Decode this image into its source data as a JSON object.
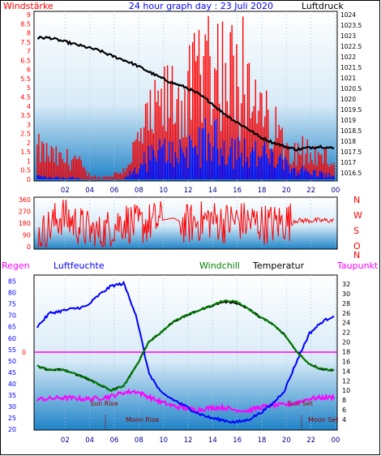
{
  "title": "24 hour graph day : 23 Juli 2020",
  "colors": {
    "red": "#ff0000",
    "blue": "#0000ff",
    "black": "#000000",
    "magenta": "#ff00ff",
    "green": "#008000",
    "navy": "#00008b",
    "maroon": "#8b0000"
  },
  "hour_ticks": [
    "02",
    "04",
    "06",
    "08",
    "10",
    "12",
    "14",
    "16",
    "18",
    "20",
    "22",
    "00"
  ],
  "chart_data": [
    {
      "type": "line",
      "panel": "wind-and-pressure",
      "left_label": "Windstärke",
      "right_label": "Luftdruck",
      "left_ticks": [
        "0",
        "0.5",
        "1",
        "1.5",
        "2",
        "2.5",
        "3",
        "3.5",
        "4",
        "4.5",
        "5",
        "5.5",
        "6",
        "6.5",
        "7",
        "7.5",
        "8",
        "8.5",
        "9"
      ],
      "right_ticks": [
        "1016.5",
        "1017",
        "1017.5",
        "1018",
        "1018.5",
        "1019",
        "1019.5",
        "1020",
        "1020.5",
        "1021",
        "1021.5",
        "1022",
        "1022.5",
        "1023",
        "1023.5",
        "1024"
      ],
      "ylim_left": [
        0,
        9
      ],
      "ylim_right": [
        1016.5,
        1024
      ],
      "x": [
        0,
        1,
        2,
        3,
        4,
        5,
        6,
        7,
        8,
        9,
        10,
        11,
        12,
        13,
        14,
        15,
        16,
        17,
        18,
        19,
        20,
        21,
        22,
        23,
        24
      ],
      "series": [
        {
          "role": "pressure",
          "color": "#000000",
          "values": [
            1022.9,
            1022.9,
            1022.75,
            1022.6,
            1022.45,
            1022.3,
            1022.05,
            1021.85,
            1021.6,
            1021.3,
            1021.0,
            1020.75,
            1020.55,
            1020.25,
            1019.85,
            1019.35,
            1018.95,
            1018.6,
            1018.2,
            1017.95,
            1017.75,
            1017.6,
            1017.7,
            1017.75,
            1017.65
          ]
        },
        {
          "role": "wind-gust",
          "color": "#ff0000",
          "values": [
            1.6,
            1.3,
            1.0,
            1.2,
            0.3,
            0.1,
            0.2,
            0.5,
            1.8,
            3.0,
            3.8,
            4.5,
            4.2,
            5.5,
            6.8,
            6.0,
            5.5,
            4.2,
            3.5,
            2.8,
            2.0,
            1.8,
            1.4,
            1.2,
            1.0
          ]
        },
        {
          "role": "wind-average",
          "color": "#0000ff",
          "values": [
            0.2,
            0.1,
            0.1,
            0.1,
            0.0,
            0.0,
            0.0,
            0.0,
            0.6,
            1.2,
            1.5,
            1.6,
            1.7,
            2.0,
            2.2,
            2.0,
            1.8,
            1.6,
            1.4,
            1.2,
            0.8,
            0.6,
            0.4,
            0.3,
            0.2
          ]
        }
      ]
    },
    {
      "type": "line",
      "panel": "wind-direction",
      "left_ticks": [
        "0",
        "90",
        "180",
        "270",
        "360"
      ],
      "right_letters": [
        "N",
        "W",
        "S",
        "O",
        "N"
      ],
      "ylim": [
        0,
        360
      ],
      "x": [
        0,
        1,
        2,
        3,
        4,
        5,
        6,
        7,
        8,
        9,
        10,
        11,
        12,
        13,
        14,
        15,
        16,
        17,
        18,
        19,
        20,
        21,
        22,
        23,
        24
      ],
      "series": [
        {
          "role": "wind-direction",
          "color": "#ff0000",
          "values": [
            60,
            150,
            240,
            180,
            130,
            90,
            150,
            200,
            160,
            180,
            200,
            220,
            170,
            190,
            210,
            180,
            200,
            190,
            180,
            170,
            190,
            200,
            210,
            220,
            210
          ]
        }
      ]
    },
    {
      "type": "line",
      "panel": "humidity-and-temperature",
      "left_labels": [
        "Regen",
        "Luftfeuchte"
      ],
      "right_labels": [
        "Windchill",
        "Temperatur",
        "Taupunkt"
      ],
      "left_ticks": [
        "20",
        "25",
        "30",
        "35",
        "40",
        "45",
        "50",
        "55",
        "60",
        "65",
        "70",
        "75",
        "80",
        "85"
      ],
      "right_ticks": [
        "4",
        "6",
        "8",
        "10",
        "12",
        "14",
        "16",
        "18",
        "20",
        "22",
        "24",
        "26",
        "28",
        "30",
        "32"
      ],
      "rain_tick": "0",
      "ylim_left": [
        20,
        87
      ],
      "ylim_right": [
        2.5,
        33
      ],
      "annotations": [
        "Sun Rise",
        "Moon Rise",
        "Sun Set",
        "Moon Set"
      ],
      "x": [
        0,
        1,
        2,
        3,
        4,
        5,
        6,
        7,
        8,
        9,
        10,
        11,
        12,
        13,
        14,
        15,
        16,
        17,
        18,
        19,
        20,
        21,
        22,
        23,
        24
      ],
      "series": [
        {
          "role": "humidity",
          "color": "#0000ff",
          "values": [
            65,
            71,
            72,
            73,
            74,
            79,
            83,
            84,
            70,
            45,
            36,
            33,
            30,
            27,
            25,
            24,
            23,
            24,
            27,
            31,
            37,
            50,
            62,
            67,
            70
          ]
        },
        {
          "role": "temperature",
          "color": "#000000",
          "values": [
            15.0,
            14.2,
            14.3,
            13.5,
            12.5,
            11.2,
            10.0,
            11.0,
            15.0,
            20.0,
            22.0,
            24.2,
            25.4,
            26.5,
            27.4,
            28.3,
            28.2,
            27.0,
            25.2,
            23.8,
            21.5,
            18.0,
            15.5,
            14.4,
            14.2
          ]
        },
        {
          "role": "windchill",
          "color": "#008000",
          "values": [
            15.0,
            14.2,
            14.3,
            13.5,
            12.5,
            11.2,
            10.0,
            11.0,
            15.0,
            20.0,
            22.0,
            24.2,
            25.4,
            26.5,
            27.4,
            28.5,
            28.5,
            27.0,
            25.2,
            23.8,
            21.5,
            18.0,
            15.5,
            14.4,
            14.2
          ]
        },
        {
          "role": "dewpoint",
          "color": "#ff00ff",
          "values": [
            8.2,
            8.3,
            8.5,
            8.4,
            8.2,
            8.4,
            8.8,
            9.6,
            9.8,
            8.7,
            7.6,
            6.8,
            6.3,
            6.0,
            6.4,
            6.5,
            6.0,
            5.8,
            6.5,
            6.9,
            7.0,
            7.5,
            8.3,
            8.5,
            8.6
          ]
        },
        {
          "role": "rain",
          "color": "#ff00ff",
          "values": [
            0,
            0,
            0,
            0,
            0,
            0,
            0,
            0,
            0,
            0,
            0,
            0,
            0,
            0,
            0,
            0,
            0,
            0,
            0,
            0,
            0,
            0,
            0,
            0,
            0
          ]
        }
      ]
    }
  ]
}
